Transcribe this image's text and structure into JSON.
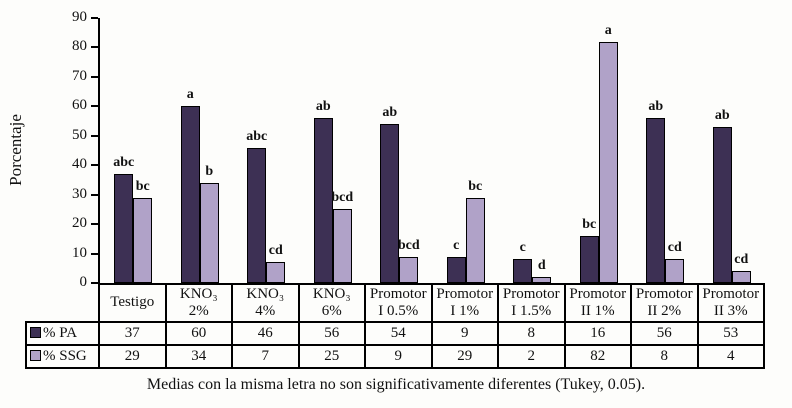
{
  "figure": {
    "footnote": "Medias con la misma letra no son significativamente diferentes (Tukey, 0.05)."
  },
  "chart_data": {
    "type": "bar",
    "title": "",
    "xlabel": "",
    "ylabel": "Porcentaje",
    "ylim": [
      0,
      90
    ],
    "y_ticks": [
      0,
      10,
      20,
      30,
      40,
      50,
      60,
      70,
      80,
      90
    ],
    "grid": false,
    "legend_position": "table-left",
    "categories": [
      "Testigo",
      "KNO₃ 2%",
      "KNO₃ 4%",
      "KNO₃ 6%",
      "Promotor I 0.5%",
      "Promotor I 1%",
      "Promotor I 1.5%",
      "Promotor II 1%",
      "Promotor II 2%",
      "Promotor II 3%"
    ],
    "category_display_lines": [
      [
        "Testigo"
      ],
      [
        "KNO₃",
        "2%"
      ],
      [
        "KNO₃",
        "4%"
      ],
      [
        "KNO₃",
        "6%"
      ],
      [
        "Promotor",
        "I 0.5%"
      ],
      [
        "Promotor",
        "I 1%"
      ],
      [
        "Promotor",
        "I 1.5%"
      ],
      [
        "Promotor",
        "II 1%"
      ],
      [
        "Promotor",
        "II 2%"
      ],
      [
        "Promotor",
        "II 3%"
      ]
    ],
    "series": [
      {
        "name": "% PA",
        "color": "#3d3054",
        "values": [
          37,
          60,
          46,
          56,
          54,
          9,
          8,
          16,
          56,
          53
        ],
        "letters": [
          "abc",
          "a",
          "abc",
          "ab",
          "ab",
          "c",
          "c",
          "bc",
          "ab",
          "ab"
        ]
      },
      {
        "name": "% SSG",
        "color": "#b0a2c8",
        "values": [
          29,
          34,
          7,
          25,
          9,
          29,
          2,
          82,
          8,
          4
        ],
        "letters": [
          "bc",
          "b",
          "cd",
          "bcd",
          "bcd",
          "bc",
          "d",
          "a",
          "cd",
          "cd"
        ]
      }
    ]
  }
}
